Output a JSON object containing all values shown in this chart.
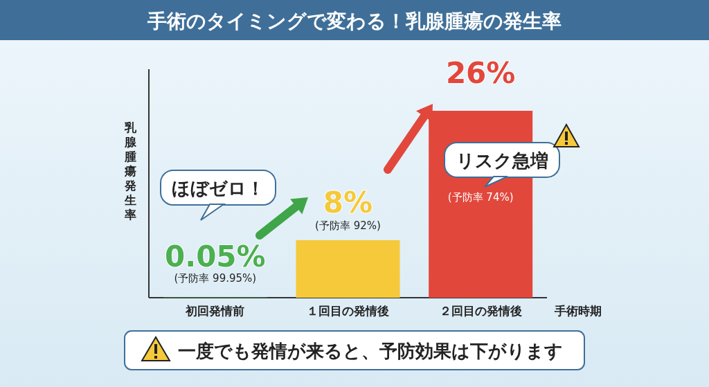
{
  "chart_data": {
    "type": "bar",
    "title": "手術のタイミングで変わる！乳腺腫瘍の発生率",
    "ylabel": "乳腺腫瘍発生率",
    "xlabel": "手術時期",
    "categories": [
      "初回発情前",
      "１回目の発情後",
      "２回目の発情後"
    ],
    "values": [
      0.05,
      8,
      26
    ],
    "colors": [
      "#4caf50",
      "#f5c93a",
      "#e2473c"
    ],
    "value_labels": [
      "0.05%",
      "8%",
      "26%"
    ],
    "annotations": [
      "ほぼゼロ！",
      "リスク急増",
      "(予防率 99.95%)",
      "(予防率 92%)",
      "(予防率 74%)",
      "一度でも発情が来ると、予防効果は下がります"
    ]
  }
}
